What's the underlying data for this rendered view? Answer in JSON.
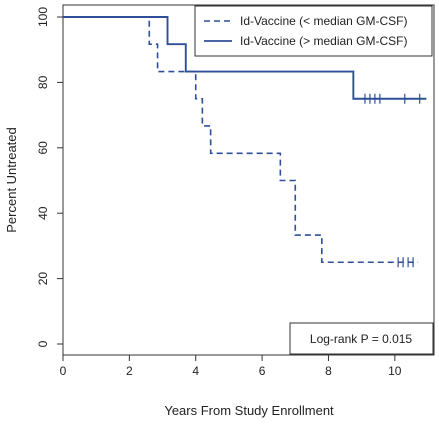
{
  "chart_data": {
    "type": "line",
    "subtype": "kaplan-meier step",
    "xlabel": "Years From Study Enrollment",
    "ylabel": "Percent Untreated",
    "xlim": [
      0,
      11
    ],
    "ylim": [
      0,
      100
    ],
    "x_ticks": [
      0,
      2,
      4,
      6,
      8,
      10
    ],
    "y_ticks": [
      0,
      20,
      40,
      60,
      80,
      100
    ],
    "grid": false,
    "legend_position": "top-right",
    "annotation": "Log-rank P = 0.015",
    "series": [
      {
        "name": "Id-Vaccine (< median GM-CSF)",
        "style": "dashed",
        "color": "#2f4f9a",
        "steps": [
          [
            0,
            100
          ],
          [
            2.6,
            91.7
          ],
          [
            2.85,
            83.3
          ],
          [
            4.0,
            75
          ],
          [
            4.2,
            66.7
          ],
          [
            4.45,
            58.3
          ],
          [
            6.55,
            50
          ],
          [
            7.0,
            33.3
          ],
          [
            7.8,
            25
          ],
          [
            10.7,
            25
          ]
        ],
        "censored": [
          [
            10.1,
            25
          ],
          [
            10.25,
            25
          ],
          [
            10.4,
            25
          ],
          [
            10.55,
            25
          ]
        ]
      },
      {
        "name": "Id-Vaccine (> median GM-CSF)",
        "style": "solid",
        "color": "#2f4f9a",
        "steps": [
          [
            0,
            100
          ],
          [
            3.15,
            91.7
          ],
          [
            3.7,
            83.3
          ],
          [
            8.75,
            75
          ],
          [
            10.95,
            75
          ]
        ],
        "censored": [
          [
            9.1,
            75
          ],
          [
            9.25,
            75
          ],
          [
            9.4,
            75
          ],
          [
            9.55,
            75
          ],
          [
            10.3,
            75
          ],
          [
            10.75,
            75
          ]
        ]
      }
    ]
  }
}
